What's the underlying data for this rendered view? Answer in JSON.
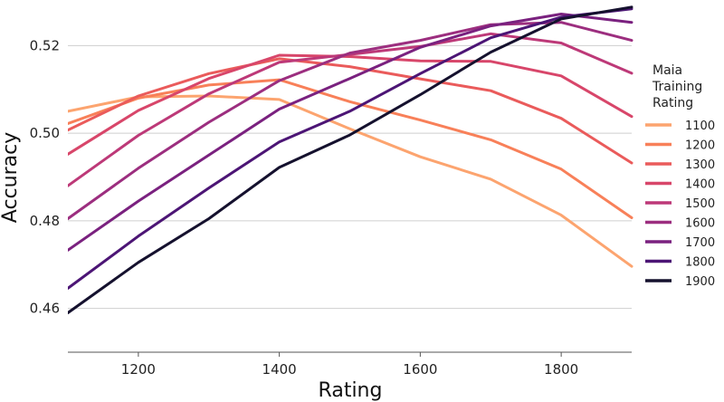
{
  "chart_data": {
    "type": "line",
    "xlabel": "Rating",
    "ylabel": "Accuracy",
    "xlim": [
      1100,
      1900
    ],
    "ylim": [
      0.45,
      0.53
    ],
    "xticks": [
      1200,
      1400,
      1600,
      1800
    ],
    "yticks": [
      0.46,
      0.48,
      0.5,
      0.52
    ],
    "ytick_labels": [
      "0.46",
      "0.48",
      "0.50",
      "0.52"
    ],
    "grid": "horizontal",
    "legend": {
      "title_lines": [
        "Maia",
        "Training",
        "Rating"
      ],
      "placement": "right"
    },
    "x": [
      1100,
      1200,
      1300,
      1400,
      1500,
      1600,
      1700,
      1800,
      1900
    ],
    "series": [
      {
        "name": "1100",
        "color": "#fca46f",
        "values": [
          0.505,
          0.5083,
          0.5085,
          0.5077,
          0.501,
          0.4946,
          0.4895,
          0.4813,
          0.4696
        ]
      },
      {
        "name": "1200",
        "color": "#f88059",
        "values": [
          0.5022,
          0.508,
          0.511,
          0.5122,
          0.5072,
          0.503,
          0.4985,
          0.4918,
          0.4807
        ]
      },
      {
        "name": "1300",
        "color": "#ea5b5b",
        "values": [
          0.5007,
          0.5085,
          0.5136,
          0.517,
          0.5152,
          0.5124,
          0.5097,
          0.5034,
          0.4932
        ]
      },
      {
        "name": "1400",
        "color": "#d8466a",
        "values": [
          0.4952,
          0.5052,
          0.5125,
          0.5178,
          0.5175,
          0.5165,
          0.5164,
          0.5131,
          0.5038
        ]
      },
      {
        "name": "1500",
        "color": "#bd3978",
        "values": [
          0.488,
          0.4995,
          0.509,
          0.5162,
          0.518,
          0.5198,
          0.5227,
          0.5206,
          0.5137
        ]
      },
      {
        "name": "1600",
        "color": "#9c2e7f",
        "values": [
          0.4805,
          0.492,
          0.5025,
          0.512,
          0.5183,
          0.5212,
          0.5248,
          0.5253,
          0.5212
        ]
      },
      {
        "name": "1700",
        "color": "#7a217f",
        "values": [
          0.4733,
          0.4845,
          0.495,
          0.5055,
          0.5125,
          0.5196,
          0.5245,
          0.5272,
          0.5253
        ]
      },
      {
        "name": "1800",
        "color": "#4c1575",
        "values": [
          0.4646,
          0.4765,
          0.4875,
          0.498,
          0.505,
          0.5136,
          0.5218,
          0.5265,
          0.5284
        ]
      },
      {
        "name": "1900",
        "color": "#15112e",
        "values": [
          0.459,
          0.4705,
          0.4805,
          0.4922,
          0.4996,
          0.5088,
          0.5185,
          0.5261,
          0.5288
        ]
      }
    ]
  }
}
